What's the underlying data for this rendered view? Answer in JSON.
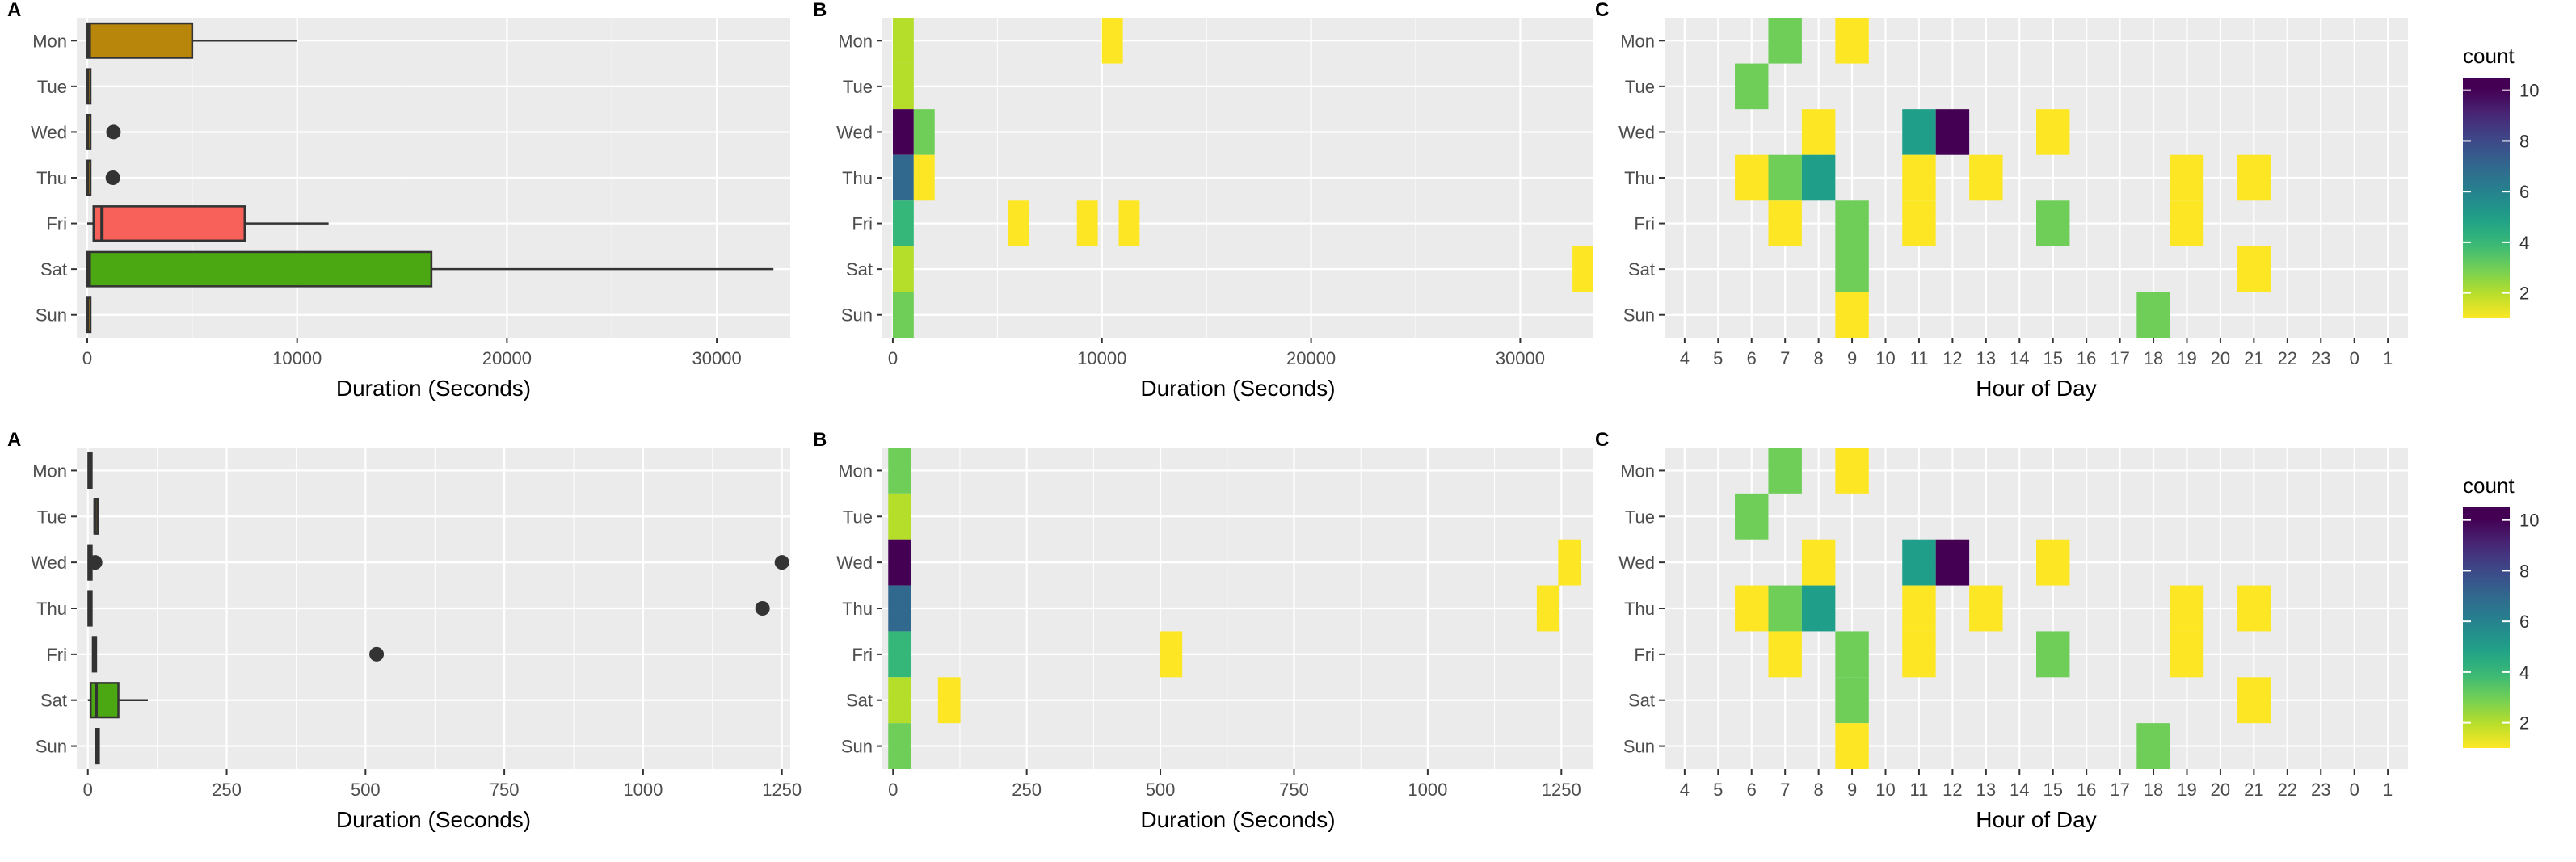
{
  "chart_data": [
    {
      "tag": "A",
      "type": "boxplot",
      "categories": [
        "Mon",
        "Tue",
        "Wed",
        "Thu",
        "Fri",
        "Sat",
        "Sun"
      ],
      "xlabel": "Duration (Seconds)",
      "xlim": [
        -500,
        33500
      ],
      "xticks": [
        0,
        10000,
        20000,
        30000
      ],
      "xtick_labels": [
        "0",
        "10000",
        "20000",
        "30000"
      ],
      "boxes": [
        {
          "day": "Mon",
          "min": 0,
          "q1": 0,
          "median": 100,
          "q3": 5000,
          "max": 10000,
          "outliers": [],
          "color": "#b8860b"
        },
        {
          "day": "Tue",
          "min": 0,
          "q1": 0,
          "median": 10,
          "q3": 40,
          "max": 80,
          "outliers": [],
          "color": "#b8860b"
        },
        {
          "day": "Wed",
          "min": 0,
          "q1": 0,
          "median": 10,
          "q3": 30,
          "max": 60,
          "outliers": [
            1250
          ],
          "color": "#b8860b"
        },
        {
          "day": "Thu",
          "min": 0,
          "q1": 0,
          "median": 10,
          "q3": 30,
          "max": 60,
          "outliers": [
            1220
          ],
          "color": "#b8860b"
        },
        {
          "day": "Fri",
          "min": 0,
          "q1": 300,
          "median": 700,
          "q3": 7500,
          "max": 11500,
          "outliers": [],
          "color": "#f8605a"
        },
        {
          "day": "Sat",
          "min": 0,
          "q1": 0,
          "median": 100,
          "q3": 16400,
          "max": 32700,
          "outliers": [],
          "color": "#4ca812"
        },
        {
          "day": "Sun",
          "min": 0,
          "q1": 0,
          "median": 10,
          "q3": 30,
          "max": 60,
          "outliers": [],
          "color": "#b8860b"
        }
      ]
    },
    {
      "tag": "B",
      "type": "heatmap",
      "categories": [
        "Mon",
        "Tue",
        "Wed",
        "Thu",
        "Fri",
        "Sat",
        "Sun"
      ],
      "xlabel": "Duration (Seconds)",
      "xlim": [
        -500,
        33500
      ],
      "xticks": [
        0,
        10000,
        20000,
        30000
      ],
      "xtick_labels": [
        "0",
        "10000",
        "20000",
        "30000"
      ],
      "binwidth": 1000,
      "cells": [
        {
          "day": "Mon",
          "x": 500,
          "count": 2
        },
        {
          "day": "Mon",
          "x": 10500,
          "count": 1
        },
        {
          "day": "Tue",
          "x": 500,
          "count": 2
        },
        {
          "day": "Wed",
          "x": 500,
          "count": 10
        },
        {
          "day": "Wed",
          "x": 1500,
          "count": 3
        },
        {
          "day": "Thu",
          "x": 500,
          "count": 7
        },
        {
          "day": "Thu",
          "x": 1500,
          "count": 1
        },
        {
          "day": "Fri",
          "x": 500,
          "count": 4
        },
        {
          "day": "Fri",
          "x": 6000,
          "count": 1
        },
        {
          "day": "Fri",
          "x": 9300,
          "count": 1
        },
        {
          "day": "Fri",
          "x": 11300,
          "count": 1
        },
        {
          "day": "Sat",
          "x": 500,
          "count": 2
        },
        {
          "day": "Sat",
          "x": 33000,
          "count": 1
        },
        {
          "day": "Sun",
          "x": 500,
          "count": 3
        }
      ]
    },
    {
      "tag": "C",
      "type": "heatmap",
      "categories": [
        "Mon",
        "Tue",
        "Wed",
        "Thu",
        "Fri",
        "Sat",
        "Sun"
      ],
      "xlabel": "Hour of Day",
      "hours": [
        "4",
        "5",
        "6",
        "7",
        "8",
        "9",
        "10",
        "11",
        "12",
        "13",
        "14",
        "15",
        "16",
        "17",
        "18",
        "19",
        "20",
        "21",
        "22",
        "23",
        "0",
        "1"
      ],
      "cells": [
        {
          "day": "Mon",
          "hour": "7",
          "count": 3
        },
        {
          "day": "Mon",
          "hour": "9",
          "count": 1
        },
        {
          "day": "Tue",
          "hour": "6",
          "count": 3
        },
        {
          "day": "Wed",
          "hour": "8",
          "count": 1
        },
        {
          "day": "Wed",
          "hour": "11",
          "count": 5
        },
        {
          "day": "Wed",
          "hour": "12",
          "count": 10
        },
        {
          "day": "Wed",
          "hour": "15",
          "count": 1
        },
        {
          "day": "Thu",
          "hour": "6",
          "count": 1
        },
        {
          "day": "Thu",
          "hour": "7",
          "count": 3
        },
        {
          "day": "Thu",
          "hour": "8",
          "count": 5
        },
        {
          "day": "Thu",
          "hour": "11",
          "count": 1
        },
        {
          "day": "Thu",
          "hour": "13",
          "count": 1
        },
        {
          "day": "Thu",
          "hour": "19",
          "count": 1
        },
        {
          "day": "Thu",
          "hour": "21",
          "count": 1
        },
        {
          "day": "Fri",
          "hour": "7",
          "count": 1
        },
        {
          "day": "Fri",
          "hour": "9",
          "count": 3
        },
        {
          "day": "Fri",
          "hour": "11",
          "count": 1
        },
        {
          "day": "Fri",
          "hour": "15",
          "count": 3
        },
        {
          "day": "Fri",
          "hour": "19",
          "count": 1
        },
        {
          "day": "Sat",
          "hour": "9",
          "count": 3
        },
        {
          "day": "Sat",
          "hour": "21",
          "count": 1
        },
        {
          "day": "Sun",
          "hour": "9",
          "count": 1
        },
        {
          "day": "Sun",
          "hour": "18",
          "count": 3
        }
      ]
    },
    {
      "tag": "A",
      "type": "boxplot",
      "categories": [
        "Mon",
        "Tue",
        "Wed",
        "Thu",
        "Fri",
        "Sat",
        "Sun"
      ],
      "xlabel": "Duration (Seconds)",
      "xlim": [
        -20,
        1265
      ],
      "xticks": [
        0,
        250,
        500,
        750,
        1000,
        1250
      ],
      "xtick_labels": [
        "0",
        "250",
        "500",
        "750",
        "1000",
        "1250"
      ],
      "boxes": [
        {
          "day": "Mon",
          "min": 0,
          "q1": 1,
          "median": 3,
          "q3": 5,
          "max": 8,
          "outliers": [],
          "color": "#b8860b"
        },
        {
          "day": "Tue",
          "min": 10,
          "q1": 12,
          "median": 13,
          "q3": 15,
          "max": 17,
          "outliers": [],
          "color": "#b8860b"
        },
        {
          "day": "Wed",
          "min": 0,
          "q1": 1,
          "median": 3,
          "q3": 5,
          "max": 8,
          "outliers": [
            13,
            1250
          ],
          "color": "#b8860b"
        },
        {
          "day": "Thu",
          "min": 0,
          "q1": 1,
          "median": 3,
          "q3": 5,
          "max": 8,
          "outliers": [
            1215
          ],
          "color": "#b8860b"
        },
        {
          "day": "Fri",
          "min": 8,
          "q1": 9,
          "median": 11,
          "q3": 13,
          "max": 15,
          "outliers": [
            520
          ],
          "color": "#f8605a"
        },
        {
          "day": "Sat",
          "min": 0,
          "q1": 5,
          "median": 15,
          "q3": 55,
          "max": 108,
          "outliers": [],
          "color": "#4ca812"
        },
        {
          "day": "Sun",
          "min": 12,
          "q1": 14,
          "median": 16,
          "q3": 18,
          "max": 20,
          "outliers": [],
          "color": "#b8860b"
        }
      ]
    },
    {
      "tag": "B",
      "type": "heatmap",
      "categories": [
        "Mon",
        "Tue",
        "Wed",
        "Thu",
        "Fri",
        "Sat",
        "Sun"
      ],
      "xlabel": "Duration (Seconds)",
      "xlim": [
        -20,
        1310
      ],
      "xticks": [
        0,
        250,
        500,
        750,
        1000,
        1250
      ],
      "xtick_labels": [
        "0",
        "250",
        "500",
        "750",
        "1000",
        "1250"
      ],
      "binwidth": 42,
      "cells": [
        {
          "day": "Mon",
          "x": 12,
          "count": 3
        },
        {
          "day": "Tue",
          "x": 12,
          "count": 2
        },
        {
          "day": "Wed",
          "x": 12,
          "count": 10
        },
        {
          "day": "Wed",
          "x": 1265,
          "count": 1
        },
        {
          "day": "Thu",
          "x": 12,
          "count": 7
        },
        {
          "day": "Thu",
          "x": 1225,
          "count": 1
        },
        {
          "day": "Fri",
          "x": 12,
          "count": 4
        },
        {
          "day": "Fri",
          "x": 520,
          "count": 1
        },
        {
          "day": "Sat",
          "x": 12,
          "count": 2
        },
        {
          "day": "Sat",
          "x": 105,
          "count": 1
        },
        {
          "day": "Sun",
          "x": 12,
          "count": 3
        }
      ]
    },
    {
      "tag": "C",
      "type": "heatmap",
      "categories": [
        "Mon",
        "Tue",
        "Wed",
        "Thu",
        "Fri",
        "Sat",
        "Sun"
      ],
      "xlabel": "Hour of Day",
      "hours": [
        "4",
        "5",
        "6",
        "7",
        "8",
        "9",
        "10",
        "11",
        "12",
        "13",
        "14",
        "15",
        "16",
        "17",
        "18",
        "19",
        "20",
        "21",
        "22",
        "23",
        "0",
        "1"
      ],
      "cells": [
        {
          "day": "Mon",
          "hour": "7",
          "count": 3
        },
        {
          "day": "Mon",
          "hour": "9",
          "count": 1
        },
        {
          "day": "Tue",
          "hour": "6",
          "count": 3
        },
        {
          "day": "Wed",
          "hour": "8",
          "count": 1
        },
        {
          "day": "Wed",
          "hour": "11",
          "count": 5
        },
        {
          "day": "Wed",
          "hour": "12",
          "count": 10
        },
        {
          "day": "Wed",
          "hour": "15",
          "count": 1
        },
        {
          "day": "Thu",
          "hour": "6",
          "count": 1
        },
        {
          "day": "Thu",
          "hour": "7",
          "count": 3
        },
        {
          "day": "Thu",
          "hour": "8",
          "count": 5
        },
        {
          "day": "Thu",
          "hour": "11",
          "count": 1
        },
        {
          "day": "Thu",
          "hour": "13",
          "count": 1
        },
        {
          "day": "Thu",
          "hour": "19",
          "count": 1
        },
        {
          "day": "Thu",
          "hour": "21",
          "count": 1
        },
        {
          "day": "Fri",
          "hour": "7",
          "count": 1
        },
        {
          "day": "Fri",
          "hour": "9",
          "count": 3
        },
        {
          "day": "Fri",
          "hour": "11",
          "count": 1
        },
        {
          "day": "Fri",
          "hour": "15",
          "count": 3
        },
        {
          "day": "Fri",
          "hour": "19",
          "count": 1
        },
        {
          "day": "Sat",
          "hour": "9",
          "count": 3
        },
        {
          "day": "Sat",
          "hour": "21",
          "count": 1
        },
        {
          "day": "Sun",
          "hour": "9",
          "count": 1
        },
        {
          "day": "Sun",
          "hour": "18",
          "count": 3
        }
      ]
    }
  ],
  "legends": [
    {
      "title": "count",
      "ticks": [
        2,
        4,
        6,
        8,
        10
      ],
      "range": [
        1,
        10.5
      ],
      "colorscale": "viridis-reversed"
    },
    {
      "title": "count",
      "ticks": [
        2,
        4,
        6,
        8,
        10
      ],
      "range": [
        1,
        10.5
      ],
      "colorscale": "viridis-reversed"
    }
  ]
}
